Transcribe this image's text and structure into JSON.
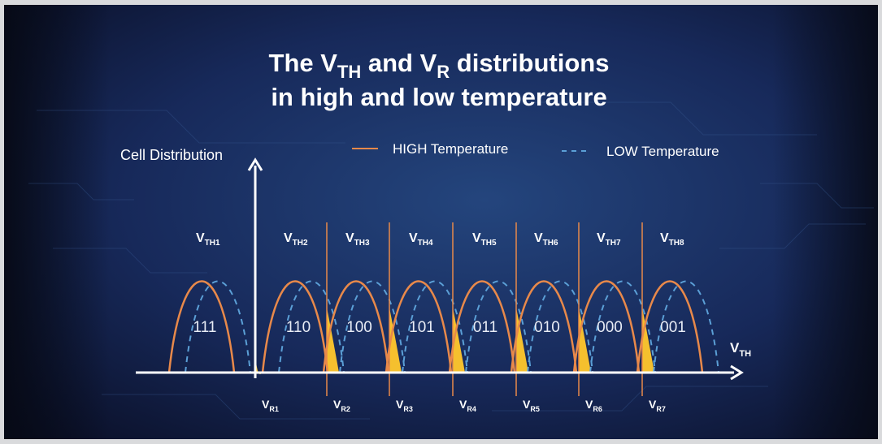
{
  "title": {
    "line1_pre": "The V",
    "line1_sub1": "TH",
    "line1_mid": " and V",
    "line1_sub2": "R",
    "line1_post": " distributions",
    "line2": "in high and low temperature"
  },
  "axes": {
    "y_label": "Cell Distribution",
    "x_label_main": "V",
    "x_label_sub": "TH"
  },
  "legend": {
    "high": "HIGH Temperature",
    "low": "LOW Temperature"
  },
  "vth_labels": [
    {
      "main": "V",
      "sub": "TH1"
    },
    {
      "main": "V",
      "sub": "TH2"
    },
    {
      "main": "V",
      "sub": "TH3"
    },
    {
      "main": "V",
      "sub": "TH4"
    },
    {
      "main": "V",
      "sub": "TH5"
    },
    {
      "main": "V",
      "sub": "TH6"
    },
    {
      "main": "V",
      "sub": "TH7"
    },
    {
      "main": "V",
      "sub": "TH8"
    }
  ],
  "state_codes": [
    "111",
    "110",
    "100",
    "101",
    "011",
    "010",
    "000",
    "001"
  ],
  "vr_labels": [
    {
      "main": "V",
      "sub": "R1"
    },
    {
      "main": "V",
      "sub": "R2"
    },
    {
      "main": "V",
      "sub": "R3"
    },
    {
      "main": "V",
      "sub": "R4"
    },
    {
      "main": "V",
      "sub": "R5"
    },
    {
      "main": "V",
      "sub": "R6"
    },
    {
      "main": "V",
      "sub": "R7"
    }
  ],
  "colors": {
    "background_center": "#1e3a6e",
    "background_edge": "#0a0f24",
    "high_temperature": "#e8894a",
    "low_temperature": "#5b9fd6",
    "overlap_fill": "#f5c02e",
    "axis": "#ffffff"
  }
}
